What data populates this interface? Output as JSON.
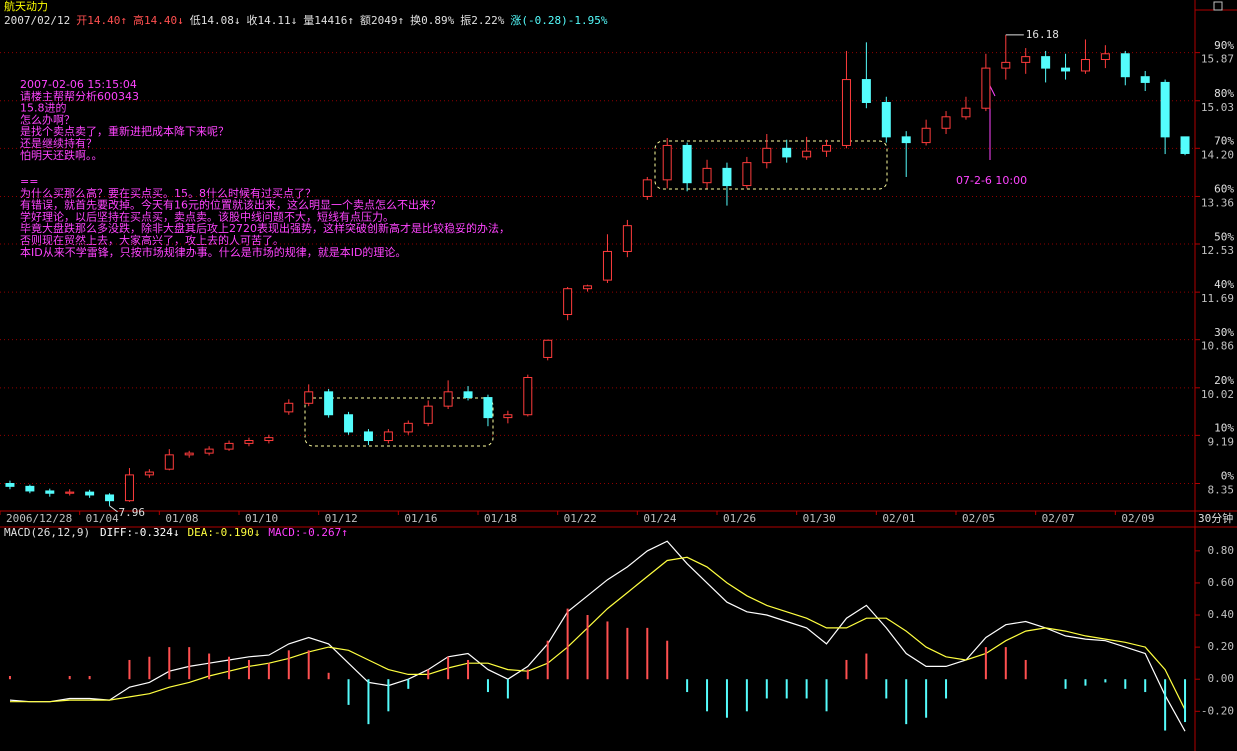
{
  "chart_data": [
    {
      "type": "candlestick",
      "title": "航天动力",
      "period": "30分钟",
      "info": [
        {
          "text": "2007/02/12",
          "color": "#e0e0e0"
        },
        {
          "text": "开14.40↑",
          "color": "#ff5050"
        },
        {
          "text": "高14.40↓",
          "color": "#ff5050"
        },
        {
          "text": "低14.08↓",
          "color": "#e0e0e0"
        },
        {
          "text": "收14.11↓",
          "color": "#e0e0e0"
        },
        {
          "text": "量14416↑",
          "color": "#e0e0e0"
        },
        {
          "text": "额2049↑",
          "color": "#e0e0e0"
        },
        {
          "text": "换0.89%",
          "color": "#e0e0e0"
        },
        {
          "text": "振2.22%",
          "color": "#e0e0e0"
        },
        {
          "text": "涨(-0.28)-1.95%",
          "color": "#54fcfc"
        }
      ],
      "notes": [
        "2007-02-06 15:15:04",
        "请楼主帮帮分析600343",
        "15.8进的",
        "怎么办啊？",
        "是找个卖点卖了，重新进把成本降下来呢？",
        "还是继续持有？",
        "怕明天还跌啊。。"
      ],
      "reply": [
        "==",
        "为什么买那么高？要在买点买。15。8什么时候有过买点了？",
        "有错误，就首先要改掉。今天有16元的位置就该出来，这么明显一个卖点怎么不出来？",
        "学好理论，以后坚持在买点买，卖点卖。该股中线问题不大，短线有点压力。",
        "毕竟大盘跌那么多没跌，除非大盘其后攻上2720表现出强势，这样突破创新高才是比较稳妥的办法，",
        "否则现在贸然上去，大家高兴了，攻上去的人可苦了。",
        "本ID从来不学雷锋，只按市场规律办事。什么是市场的规律，就是本ID的理论。"
      ],
      "arrow_note": "07-2-6  10:00",
      "max_label": "16.18",
      "min_label": "7.96",
      "up_color": "#ff3c3c",
      "down_color": "#54fcfc",
      "categories": [
        "2006/12/28",
        null,
        null,
        null,
        "01/04",
        null,
        null,
        null,
        "01/08",
        null,
        null,
        null,
        "01/10",
        null,
        null,
        null,
        "01/12",
        null,
        null,
        null,
        "01/16",
        null,
        null,
        null,
        "01/18",
        null,
        null,
        null,
        "01/22",
        null,
        null,
        null,
        "01/24",
        null,
        null,
        null,
        "01/26",
        null,
        null,
        null,
        "01/30",
        null,
        null,
        null,
        "02/01",
        null,
        null,
        null,
        "02/05",
        null,
        null,
        null,
        "02/07",
        null,
        null,
        null,
        "02/09",
        null,
        null,
        null
      ],
      "open": [
        8.35,
        8.3,
        8.22,
        8.18,
        8.2,
        8.15,
        8.05,
        8.5,
        8.6,
        8.85,
        8.88,
        8.95,
        9.05,
        9.1,
        9.6,
        9.75,
        9.95,
        9.55,
        9.25,
        9.1,
        9.25,
        9.4,
        9.7,
        9.95,
        9.85,
        9.5,
        9.55,
        10.55,
        11.3,
        11.75,
        11.9,
        12.4,
        13.36,
        13.65,
        14.25,
        13.6,
        13.85,
        13.55,
        13.95,
        14.2,
        14.05,
        14.15,
        14.25,
        15.4,
        15.0,
        14.4,
        14.3,
        14.55,
        14.75,
        14.9,
        15.6,
        15.7,
        15.8,
        15.6,
        15.55,
        15.75,
        15.85,
        15.45,
        15.35,
        14.4
      ],
      "high": [
        8.4,
        8.33,
        8.26,
        8.25,
        8.24,
        8.18,
        8.62,
        8.6,
        8.95,
        8.92,
        9.0,
        9.1,
        9.15,
        9.2,
        9.82,
        10.08,
        10.0,
        9.6,
        9.3,
        9.3,
        9.45,
        9.8,
        10.15,
        10.05,
        9.9,
        9.62,
        10.25,
        10.86,
        11.78,
        11.82,
        12.7,
        12.95,
        13.7,
        14.38,
        14.3,
        14.0,
        13.95,
        14.05,
        14.45,
        14.35,
        14.4,
        14.35,
        15.9,
        16.05,
        15.1,
        14.5,
        14.7,
        14.85,
        15.1,
        15.85,
        16.18,
        15.95,
        15.9,
        15.85,
        16.1,
        16.0,
        15.9,
        15.55,
        15.4,
        14.4
      ],
      "low": [
        8.25,
        8.18,
        8.12,
        8.14,
        8.1,
        7.96,
        8.03,
        8.45,
        8.58,
        8.8,
        8.84,
        8.92,
        9.0,
        9.05,
        9.55,
        9.7,
        9.5,
        9.2,
        9.02,
        9.05,
        9.2,
        9.35,
        9.65,
        9.8,
        9.35,
        9.4,
        9.52,
        10.5,
        11.2,
        11.7,
        11.85,
        12.3,
        13.3,
        13.5,
        13.45,
        13.5,
        13.2,
        13.5,
        13.85,
        13.95,
        14.0,
        14.05,
        14.2,
        14.9,
        14.3,
        13.7,
        14.25,
        14.45,
        14.7,
        14.85,
        15.4,
        15.5,
        15.35,
        15.4,
        15.5,
        15.6,
        15.3,
        15.2,
        14.1,
        14.08
      ],
      "close": [
        8.3,
        8.22,
        8.18,
        8.2,
        8.15,
        8.05,
        8.5,
        8.55,
        8.85,
        8.88,
        8.95,
        9.05,
        9.1,
        9.15,
        9.75,
        9.95,
        9.55,
        9.25,
        9.1,
        9.25,
        9.4,
        9.7,
        9.95,
        9.85,
        9.5,
        9.55,
        10.2,
        10.85,
        11.75,
        11.8,
        12.4,
        12.85,
        13.65,
        14.25,
        13.6,
        13.85,
        13.55,
        13.95,
        14.2,
        14.05,
        14.15,
        14.25,
        15.4,
        15.0,
        14.4,
        14.3,
        14.55,
        14.75,
        14.9,
        15.6,
        15.7,
        15.8,
        15.6,
        15.55,
        15.75,
        15.85,
        15.45,
        15.35,
        14.4,
        14.11
      ],
      "ylim": [
        7.87,
        16.3
      ],
      "yticks": [
        8.35,
        9.19,
        10.02,
        10.86,
        11.69,
        12.53,
        13.36,
        {
          "value": 14.2,
          "label": "14.20"
        },
        15.03,
        15.87
      ],
      "y2lim": [
        -5.75,
        95.21
      ],
      "y2ticks": [
        {
          "value": 0,
          "label": "0%"
        },
        {
          "value": 10,
          "label": "10%"
        },
        {
          "value": 20,
          "label": "20%"
        },
        {
          "value": 30,
          "label": "30%"
        },
        {
          "value": 40,
          "label": "40%"
        },
        {
          "value": 50,
          "label": "50%"
        },
        {
          "value": 60,
          "label": "60%"
        },
        {
          "value": 70,
          "label": "70%"
        },
        {
          "value": 80,
          "label": "80%"
        },
        {
          "value": 90,
          "label": "90%"
        }
      ],
      "grid": true
    },
    {
      "type": "macd",
      "title": "MACD(26,12,9)",
      "up_color": "#ff5050",
      "down_color": "#54fcfc",
      "series": [
        {
          "label": "DIFF:-0.324↓",
          "color": "#ffffff",
          "kind": "line",
          "values": [
            -0.13,
            -0.14,
            -0.14,
            -0.12,
            -0.12,
            -0.13,
            -0.05,
            -0.02,
            0.05,
            0.08,
            0.1,
            0.12,
            0.14,
            0.15,
            0.22,
            0.26,
            0.22,
            0.1,
            -0.02,
            -0.04,
            0.0,
            0.06,
            0.14,
            0.16,
            0.06,
            0.0,
            0.08,
            0.22,
            0.42,
            0.52,
            0.62,
            0.7,
            0.8,
            0.86,
            0.72,
            0.6,
            0.48,
            0.42,
            0.4,
            0.36,
            0.32,
            0.22,
            0.38,
            0.46,
            0.32,
            0.16,
            0.08,
            0.08,
            0.12,
            0.26,
            0.34,
            0.36,
            0.32,
            0.27,
            0.25,
            0.24,
            0.2,
            0.16,
            -0.1,
            -0.324
          ]
        },
        {
          "label": "DEA:-0.190↓",
          "color": "#ffff40",
          "kind": "line",
          "values": [
            -0.14,
            -0.14,
            -0.14,
            -0.13,
            -0.13,
            -0.13,
            -0.11,
            -0.09,
            -0.05,
            -0.02,
            0.02,
            0.05,
            0.08,
            0.1,
            0.13,
            0.17,
            0.2,
            0.18,
            0.12,
            0.06,
            0.03,
            0.03,
            0.07,
            0.1,
            0.1,
            0.06,
            0.05,
            0.1,
            0.2,
            0.32,
            0.44,
            0.54,
            0.64,
            0.74,
            0.76,
            0.7,
            0.6,
            0.52,
            0.46,
            0.42,
            0.38,
            0.32,
            0.32,
            0.38,
            0.38,
            0.3,
            0.2,
            0.14,
            0.12,
            0.16,
            0.24,
            0.3,
            0.32,
            0.3,
            0.27,
            0.25,
            0.23,
            0.2,
            0.06,
            -0.19
          ]
        },
        {
          "label": "MACD:-0.267↑",
          "color": "#ff40ff",
          "kind": "histogram",
          "values": [
            0.02,
            0.0,
            0.0,
            0.02,
            0.02,
            0.0,
            0.12,
            0.14,
            0.2,
            0.2,
            0.16,
            0.14,
            0.12,
            0.1,
            0.18,
            0.18,
            0.04,
            -0.16,
            -0.28,
            -0.2,
            -0.06,
            0.06,
            0.14,
            0.12,
            -0.08,
            -0.12,
            0.06,
            0.24,
            0.44,
            0.4,
            0.36,
            0.32,
            0.32,
            0.24,
            -0.08,
            -0.2,
            -0.24,
            -0.2,
            -0.12,
            -0.12,
            -0.12,
            -0.2,
            0.12,
            0.16,
            -0.12,
            -0.28,
            -0.24,
            -0.12,
            0.0,
            0.2,
            0.2,
            0.12,
            0.0,
            -0.06,
            -0.04,
            -0.02,
            -0.06,
            -0.08,
            -0.32,
            -0.267
          ]
        }
      ],
      "ylim": [
        -0.41,
        0.93
      ],
      "yticks": [
        {
          "value": -0.2,
          "label": "-0.20"
        },
        {
          "value": 0,
          "label": "0.00"
        },
        {
          "value": 0.2,
          "label": "0.20"
        },
        {
          "value": 0.4,
          "label": "0.40"
        },
        {
          "value": 0.6,
          "label": "0.60"
        },
        {
          "value": 0.8,
          "label": "0.80"
        }
      ]
    }
  ]
}
